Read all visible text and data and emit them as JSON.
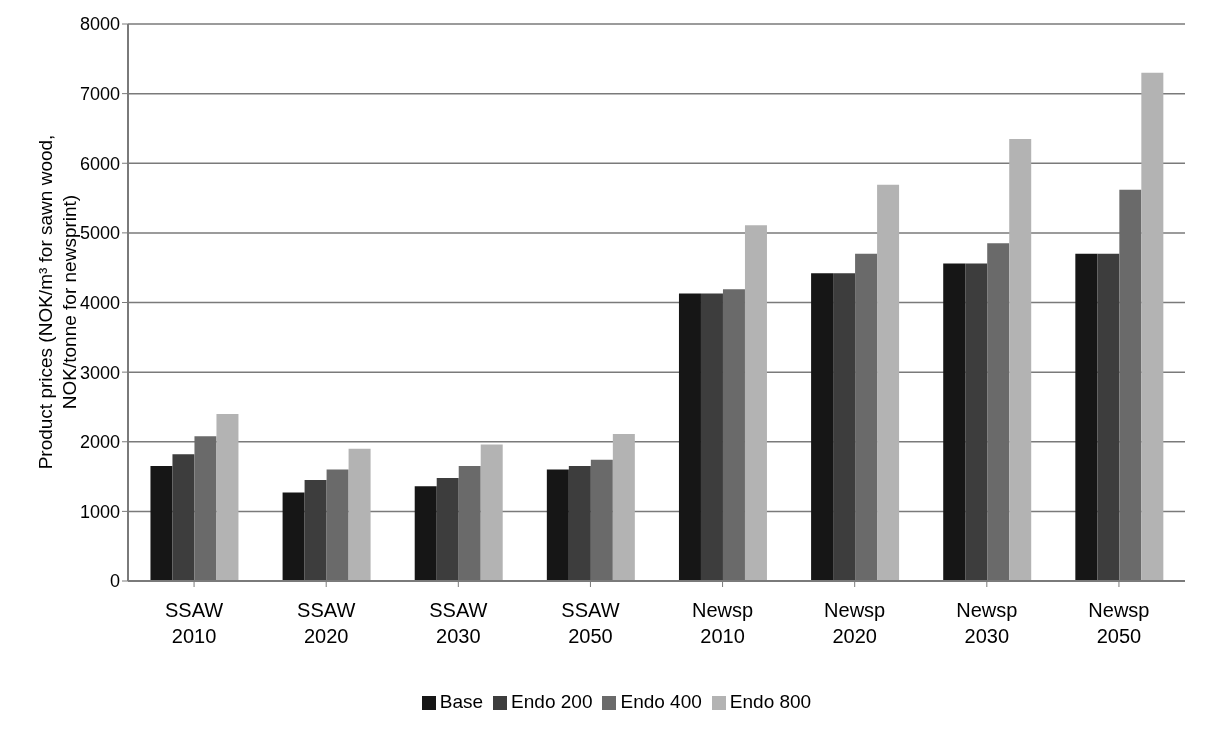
{
  "chart_data": {
    "type": "bar",
    "ylabel": "Product prices (NOK/m³ for sawn wood, NOK/tonne for newsprint)",
    "categories": [
      "SSAW 2010",
      "SSAW 2020",
      "SSAW 2030",
      "SSAW 2050",
      "Newsp 2010",
      "Newsp 2020",
      "Newsp 2030",
      "Newsp 2050"
    ],
    "series": [
      {
        "name": "Base",
        "color": "#161616",
        "values": [
          1650,
          1270,
          1360,
          1600,
          4130,
          4420,
          4560,
          4700
        ]
      },
      {
        "name": "Endo 200",
        "color": "#3d3d3d",
        "values": [
          1820,
          1450,
          1480,
          1650,
          4130,
          4420,
          4560,
          4700
        ]
      },
      {
        "name": "Endo 400",
        "color": "#6a6a6a",
        "values": [
          2080,
          1600,
          1650,
          1740,
          4190,
          4700,
          4850,
          5620
        ]
      },
      {
        "name": "Endo 800",
        "color": "#b3b3b3",
        "values": [
          2400,
          1900,
          1960,
          2110,
          5110,
          5690,
          6350,
          7300
        ]
      }
    ],
    "ylim": [
      0,
      8000
    ],
    "yticks": [
      0,
      1000,
      2000,
      3000,
      4000,
      5000,
      6000,
      7000,
      8000
    ],
    "grid": "y",
    "legend": "bottom"
  }
}
